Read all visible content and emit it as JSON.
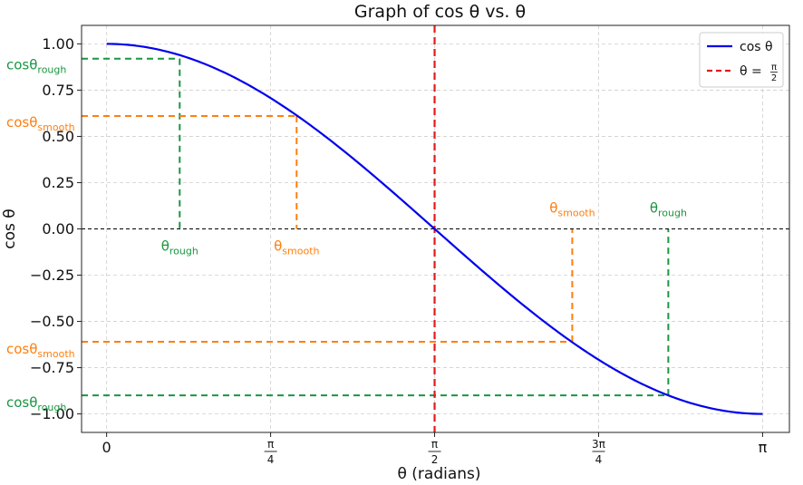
{
  "chart_data": {
    "type": "line",
    "title": "Graph of cos θ vs. θ",
    "xlabel": "θ (radians)",
    "ylabel": "cos θ",
    "xlim": [
      -0.12,
      3.27
    ],
    "ylim": [
      -1.1,
      1.1
    ],
    "grid": true,
    "legend_position": "top-right",
    "x_ticks": [
      {
        "value": 0,
        "label": "0"
      },
      {
        "value": 0.785398,
        "label_num": "π",
        "label_den": "4"
      },
      {
        "value": 1.570796,
        "label_num": "π",
        "label_den": "2"
      },
      {
        "value": 2.356194,
        "label_num": "3π",
        "label_den": "4"
      },
      {
        "value": 3.141593,
        "label": "π"
      }
    ],
    "y_ticks": [
      1.0,
      0.75,
      0.5,
      0.25,
      0.0,
      -0.25,
      -0.5,
      -0.75,
      -1.0
    ],
    "y_tick_labels": [
      "1.00",
      "0.75",
      "0.50",
      "0.25",
      "0.00",
      "−0.25",
      "−0.50",
      "−0.75",
      "−1.00"
    ],
    "series": [
      {
        "name": "cos θ",
        "function": "cos",
        "x_range": [
          0,
          3.141593
        ],
        "color": "#0000ee"
      }
    ],
    "vertical_line": {
      "x": 1.570796,
      "legend": "θ = π/2",
      "color": "#e41a1c"
    },
    "horizontal_zero_line": {
      "y": 0,
      "color": "#000000"
    },
    "annotations": [
      {
        "theta": 0.35,
        "cos": 0.92,
        "color": "#1a9641",
        "cos_label_base": "cosθ",
        "cos_label_sub": "rough",
        "theta_label_base": "θ",
        "theta_label_sub": "rough",
        "theta_label_side": "below"
      },
      {
        "theta": 0.91,
        "cos": 0.61,
        "color": "#ff7f0e",
        "cos_label_base": "cosθ",
        "cos_label_sub": "smooth",
        "theta_label_base": "θ",
        "theta_label_sub": "smooth",
        "theta_label_side": "below"
      },
      {
        "theta": 2.23,
        "cos": -0.61,
        "color": "#ff7f0e",
        "cos_label_base": "cosθ",
        "cos_label_sub": "smooth",
        "theta_label_base": "θ",
        "theta_label_sub": "smooth",
        "theta_label_side": "above"
      },
      {
        "theta": 2.69,
        "cos": -0.9,
        "color": "#1a9641",
        "cos_label_base": "cosθ",
        "cos_label_sub": "rough",
        "theta_label_base": "θ",
        "theta_label_sub": "rough",
        "theta_label_side": "above"
      }
    ],
    "legend": [
      {
        "label": "cos θ",
        "style": "solid",
        "color": "#0000ee"
      },
      {
        "label_base": "θ = ",
        "label_num": "π",
        "label_den": "2",
        "style": "dashed",
        "color": "#e41a1c"
      }
    ]
  }
}
